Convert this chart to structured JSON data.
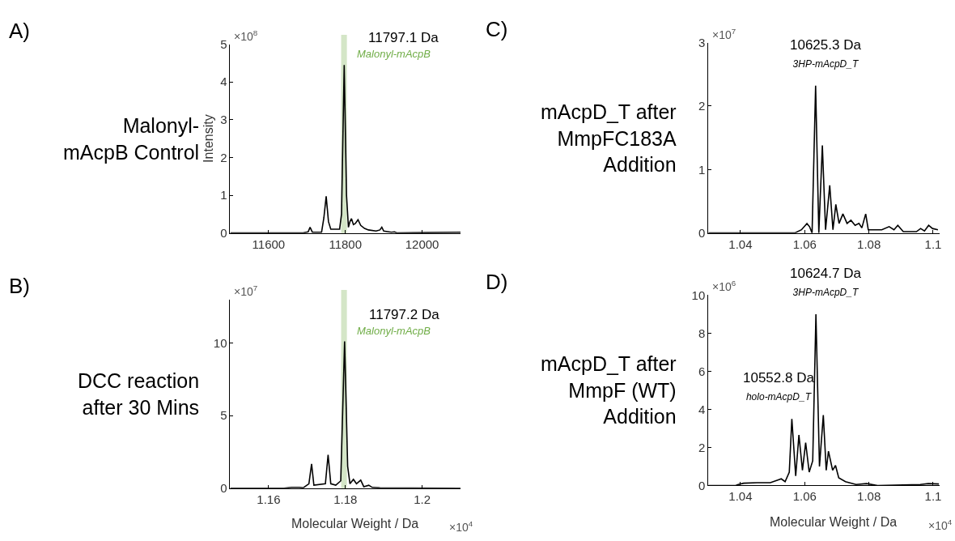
{
  "chart_data": [
    {
      "type": "line",
      "subtitle": "Malonyl-\nmAcpB Control",
      "ylabel": "Intensity",
      "color": "#000000",
      "x": [
        11500,
        11690,
        11703,
        11708,
        11714,
        11738,
        11744,
        11750,
        11756,
        11762,
        11785,
        11790,
        11797,
        11803,
        11808,
        11812,
        11816,
        11821,
        11826,
        11833,
        11840,
        11850,
        11860,
        11880,
        11890,
        11895,
        11900,
        11920,
        11928,
        11935,
        12100
      ],
      "values": [
        0,
        0,
        0.03,
        0.15,
        0.02,
        0.02,
        0.4,
        0.97,
        0.3,
        0.1,
        0.1,
        0.5,
        4.45,
        1.0,
        0.15,
        0.3,
        0.38,
        0.22,
        0.25,
        0.35,
        0.2,
        0.12,
        0.08,
        0.05,
        0.08,
        0.15,
        0.05,
        0.02,
        0.03,
        0,
        0.02
      ],
      "xlim": [
        11500,
        12100
      ],
      "xticks": [
        11600,
        11800,
        12000
      ],
      "ylim": [
        0,
        5
      ],
      "yticks": [
        0,
        1,
        2,
        3,
        4,
        5
      ],
      "bands": [
        {
          "axis": "x",
          "from": 11789,
          "to": 11804,
          "label": "Malonyl-mAcpB",
          "color": "#70ad47"
        }
      ],
      "annotations": [
        "A)",
        "×10$^{8}$",
        {
          "text": "11797.1 Da",
          "x": 11797,
          "y": 4.45
        }
      ]
    },
    {
      "type": "line",
      "subtitle": "DCC reaction\nafter 30 Mins",
      "xlabel": "Molecular Weight / Da",
      "color": "#000000",
      "x": [
        1.15,
        1.164,
        1.166,
        1.168,
        1.169,
        1.1705,
        1.1712,
        1.1718,
        1.1748,
        1.1755,
        1.1762,
        1.1775,
        1.1788,
        1.1798,
        1.1806,
        1.1812,
        1.1821,
        1.1829,
        1.184,
        1.1848,
        1.1861,
        1.187,
        1.189,
        1.21
      ],
      "values": [
        0,
        0,
        0.05,
        0.05,
        0.02,
        0.3,
        1.67,
        0.2,
        0.3,
        2.3,
        0.3,
        0.2,
        0.5,
        10.1,
        1.5,
        0.3,
        0.6,
        0.3,
        0.55,
        0.1,
        0.2,
        0.05,
        0.02,
        0
      ],
      "xlim": [
        1.15,
        1.21
      ],
      "xticks": [
        1.16,
        1.18,
        1.2
      ],
      "ylim": [
        0,
        13
      ],
      "yticks": [
        0,
        5,
        10
      ],
      "bands": [
        {
          "axis": "x",
          "from": 1.1789,
          "to": 1.1804,
          "label": "Malonyl-mAcpB",
          "color": "#70ad47"
        }
      ],
      "annotations": [
        "B)",
        "×10$^{7}$",
        "×10$^{4}$",
        {
          "text": "11797.2 Da",
          "x": 1.1798,
          "y": 10.1
        }
      ]
    },
    {
      "type": "line",
      "subtitle": "mAcpD_T after\nMmpFC183A\nAddition",
      "color": "#000000",
      "x": [
        1.03,
        1.0569,
        1.059,
        1.0607,
        1.0615,
        1.0623,
        1.0634,
        1.0644,
        1.0655,
        1.0665,
        1.0678,
        1.0688,
        1.0697,
        1.0707,
        1.0719,
        1.0732,
        1.0744,
        1.0757,
        1.0769,
        1.0778,
        1.079,
        1.0798,
        1.0815,
        1.084,
        1.0863,
        1.0878,
        1.089,
        1.0907,
        1.0948,
        1.0961,
        1.0973,
        1.0986,
        1.0998,
        1.1015
      ],
      "values": [
        0,
        0,
        0.05,
        0.15,
        0.1,
        0,
        2.32,
        0,
        1.38,
        0.05,
        0.75,
        0.05,
        0.45,
        0.15,
        0.3,
        0.15,
        0.2,
        0.12,
        0.15,
        0.08,
        0.3,
        0.05,
        0.05,
        0.05,
        0.1,
        0.05,
        0.12,
        0.02,
        0.02,
        0.07,
        0.03,
        0.12,
        0.07,
        0.05
      ],
      "xlim": [
        1.03,
        1.102
      ],
      "xticks": [
        1.04,
        1.06,
        1.08,
        1.1
      ],
      "ylim": [
        0,
        3
      ],
      "yticks": [
        0,
        1,
        2,
        3
      ],
      "annotations": [
        "C)",
        "×10$^{7}$",
        {
          "text": "10625.3 Da\n3HP-mAcpD_T",
          "x": 1.0634,
          "y": 2.32
        }
      ]
    },
    {
      "type": "line",
      "subtitle": "mAcpD_T after\nMmpF (WT)\nAddition",
      "xlabel": "Molecular Weight / Da",
      "color": "#000000",
      "x": [
        1.03,
        1.0385,
        1.0393,
        1.041,
        1.0452,
        1.0493,
        1.0518,
        1.0527,
        1.0539,
        1.0552,
        1.056,
        1.0572,
        1.0582,
        1.0593,
        1.0603,
        1.0614,
        1.0625,
        1.0635,
        1.0646,
        1.0658,
        1.0667,
        1.0674,
        1.0687,
        1.0696,
        1.0706,
        1.0727,
        1.076,
        1.0793,
        1.0827,
        1.096,
        1.0985,
        1.1018
      ],
      "values": [
        0,
        0,
        0.05,
        0.12,
        0.15,
        0.15,
        0.3,
        0.35,
        0.2,
        0.7,
        3.5,
        0.5,
        2.65,
        0.8,
        2.25,
        0.7,
        1.3,
        9.0,
        1.0,
        3.7,
        0.8,
        1.8,
        0.8,
        1.05,
        0.4,
        0.2,
        0.05,
        0.1,
        0,
        0.05,
        0.1,
        0.08
      ],
      "xlim": [
        1.03,
        1.102
      ],
      "xticks": [
        1.04,
        1.06,
        1.08,
        1.1
      ],
      "ylim": [
        0,
        10
      ],
      "yticks": [
        0,
        2,
        4,
        6,
        8,
        10
      ],
      "annotations": [
        "D)",
        "×10$^{6}$",
        "×10$^{4}$",
        {
          "text": "10624.7 Da\n3HP-mAcpD_T",
          "x": 1.0635,
          "y": 9.0
        },
        {
          "text": "10552.8 Da\nholo-mAcpD_T",
          "x": 1.056,
          "y": 3.5
        }
      ]
    }
  ]
}
